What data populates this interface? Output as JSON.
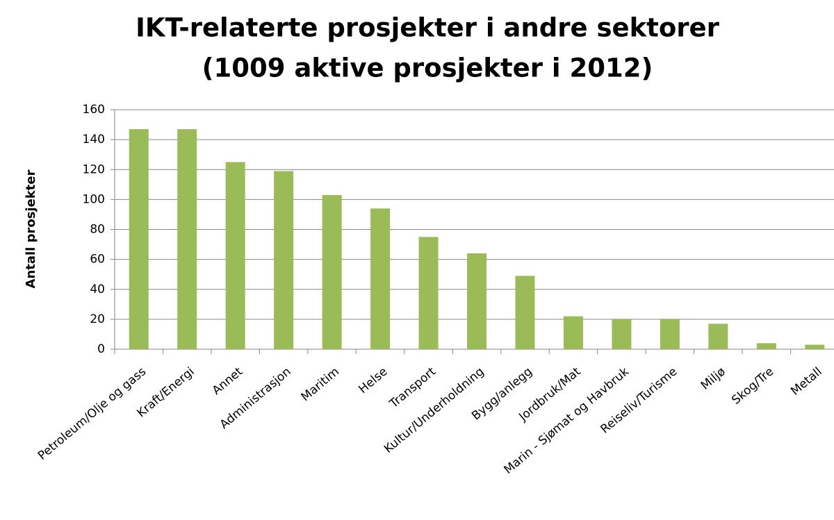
{
  "chart_data": {
    "type": "bar",
    "title": "IKT-relaterte prosjekter i andre sektorer",
    "subtitle": "(1009 aktive prosjekter i 2012)",
    "y_label": "Antall prosjekter",
    "categories": [
      "Petroleum/Olje og gass",
      "Kraft/Energi",
      "Annet",
      "Administrasjon",
      "Maritim",
      "Helse",
      "Transport",
      "Kultur/Underholdning",
      "Bygg/anlegg",
      "Jordbruk/Mat",
      "Marin - Sjømat og Havbruk",
      "Reiseliv/Turisme",
      "Miljø",
      "Skog/Tre",
      "Metall"
    ],
    "values": [
      147,
      147,
      125,
      119,
      103,
      94,
      75,
      64,
      49,
      22,
      20,
      20,
      17,
      4,
      3
    ],
    "color": "#9bbb59",
    "ylim": [
      0,
      160
    ],
    "yticks": [
      0,
      20,
      40,
      60,
      80,
      100,
      120,
      140,
      160
    ],
    "grid": true
  }
}
